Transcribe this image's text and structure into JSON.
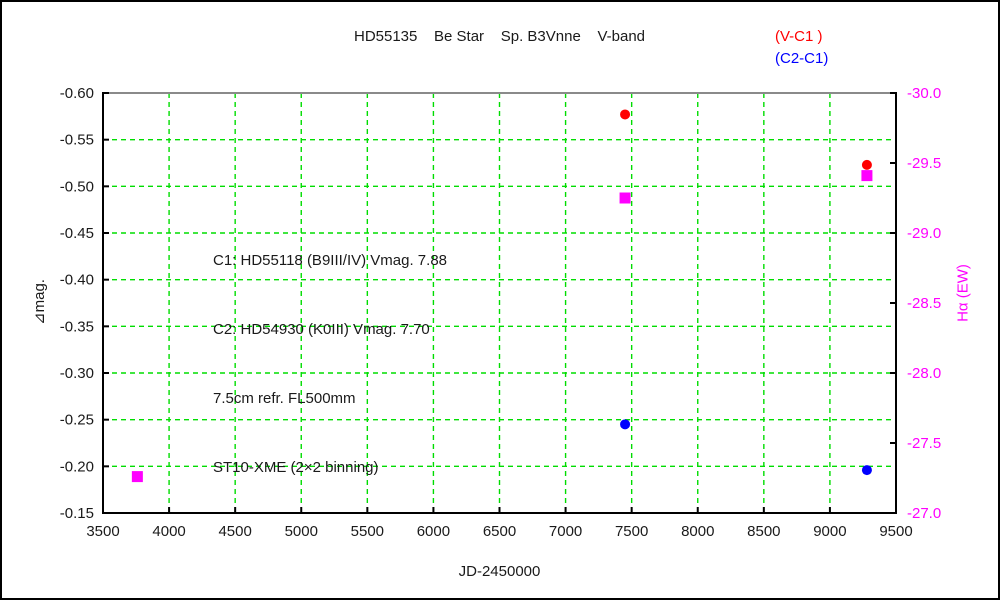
{
  "chart_data": {
    "type": "scatter",
    "title": "HD55135    Be Star    Sp. B3Vnne    V-band",
    "legend": [
      {
        "label": "(V-C1 )",
        "color": "#ff0000"
      },
      {
        "label": "(C2-C1)",
        "color": "#0000ff"
      }
    ],
    "xlabel": "JD-2450000",
    "ylabel_left": "⧿mag.",
    "ylabel_left_text": "⊿mag.",
    "ylabel_right": "Hα (EW)",
    "x_range": [
      3500,
      9500
    ],
    "x_tick_step": 500,
    "y_left_range": [
      -0.6,
      -0.15
    ],
    "y_left_tick_step": 0.05,
    "y_right_range": [
      -30.0,
      -27.0
    ],
    "y_right_tick_step": 0.5,
    "grid": {
      "on": true,
      "color": "#00dd00",
      "style": "dashed"
    },
    "frame_top_color": "#8a8a8a",
    "axis_color": "#000000",
    "series": [
      {
        "name": "(V-C1 )",
        "axis": "left",
        "marker": "circle",
        "color": "#ff0000",
        "points": [
          {
            "x": 7450,
            "y": -0.577
          },
          {
            "x": 9280,
            "y": -0.523
          }
        ]
      },
      {
        "name": "(C2-C1)",
        "axis": "left",
        "marker": "circle",
        "color": "#0000ff",
        "points": [
          {
            "x": 7450,
            "y": -0.245
          },
          {
            "x": 9280,
            "y": -0.196
          }
        ]
      },
      {
        "name": "Halpha EW",
        "axis": "right",
        "marker": "square",
        "color": "#ff00ff",
        "points": [
          {
            "x": 3760,
            "y": -27.26
          },
          {
            "x": 7450,
            "y": -29.25
          },
          {
            "x": 9280,
            "y": -29.41
          }
        ]
      }
    ],
    "annotation": {
      "lines": [
        "C1: HD55118 (B9III/IV) Vmag. 7.88",
        "C2: HD54930 (K0III) Vmag. 7.70",
        "7.5cm refr. FL500mm",
        "ST10-XME (2×2 binning)"
      ]
    }
  }
}
